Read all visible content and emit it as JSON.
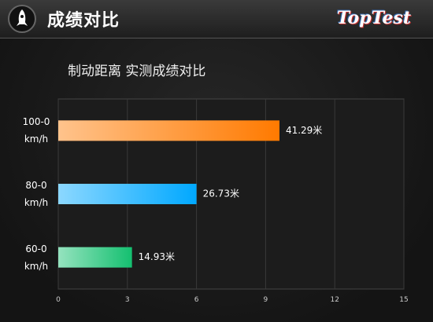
{
  "header": {
    "title": "成绩对比",
    "logo": "TopTest"
  },
  "chart_data": {
    "type": "bar",
    "orientation": "horizontal",
    "subtitle": "制动距离 实测成绩对比",
    "categories": [
      "100-0 km/h",
      "80-0 km/h",
      "60-0 km/h"
    ],
    "values": [
      9.6,
      6.0,
      3.2
    ],
    "annotations": [
      "41.29米",
      "26.73米",
      "14.93米"
    ],
    "colors": [
      "#ff7a00",
      "#00a8ff",
      "#14c070"
    ],
    "xlim": [
      0,
      15
    ],
    "xticks": [
      0,
      3,
      6,
      9,
      12,
      15
    ],
    "grid": true
  }
}
